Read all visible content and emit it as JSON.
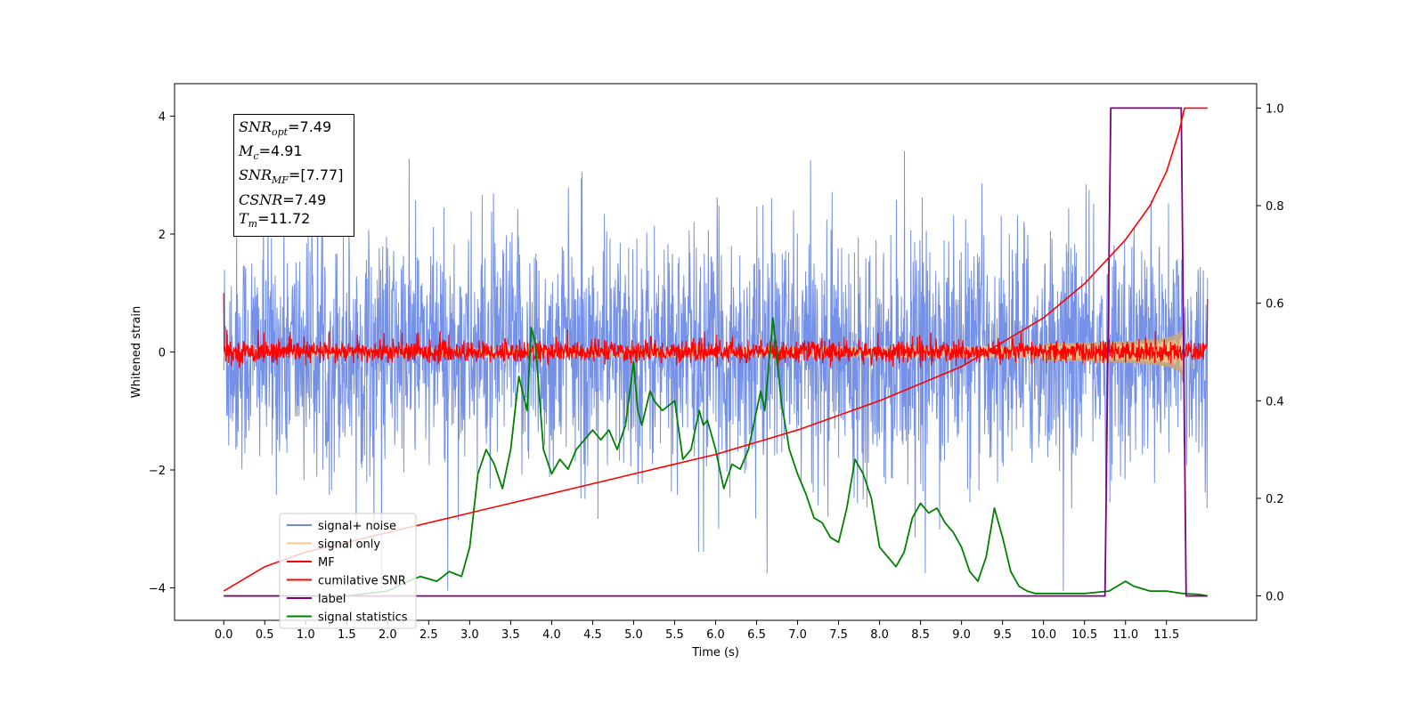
{
  "chart_data": {
    "type": "line",
    "xlabel": "Time (s)",
    "ylabel": "Whitened strain",
    "xlim": [
      -0.6,
      12.6
    ],
    "ylim_left": [
      -4.55,
      4.55
    ],
    "ylim_right": [
      -0.05,
      1.05
    ],
    "x_ticks": [
      0.0,
      0.5,
      1.0,
      1.5,
      2.0,
      2.5,
      3.0,
      3.5,
      4.0,
      4.5,
      5.0,
      5.5,
      6.0,
      6.5,
      7.0,
      7.5,
      8.0,
      8.5,
      9.0,
      9.5,
      10.0,
      10.5,
      11.0,
      11.5
    ],
    "x_tick_labels": [
      "0.0",
      "0.5",
      "1.0",
      "1.5",
      "2.0",
      "2.5",
      "3.0",
      "3.5",
      "4.0",
      "4.5",
      "5.0",
      "5.5",
      "6.0",
      "6.5",
      "7.0",
      "7.5",
      "8.0",
      "8.5",
      "9.0",
      "9.5",
      "10.0",
      "10.5",
      "11.0",
      "11.5"
    ],
    "y_ticks_left": [
      4,
      2,
      0,
      -2,
      -4
    ],
    "y_tick_labels_left": [
      "4",
      "2",
      "0",
      "−2",
      "−4"
    ],
    "y_ticks_right": [
      1.0,
      0.8,
      0.6,
      0.4,
      0.2,
      0.0
    ],
    "y_tick_labels_right": [
      "1.0",
      "0.8",
      "0.6",
      "0.4",
      "0.2",
      "0.0"
    ],
    "grid": false,
    "legend_position": "lower-left",
    "series": [
      {
        "name": "signal+ noise",
        "color": "#6d8ae6",
        "axis": "left",
        "kind": "noise",
        "amplitude_envelope": 2.3
      },
      {
        "name": "signal only",
        "color": "#f5c98a",
        "axis": "left",
        "kind": "chirp",
        "peak_amplitude": 0.5,
        "merger_time": 11.72
      },
      {
        "name": "MF",
        "color": "#ff0000",
        "axis": "left",
        "kind": "noise",
        "amplitude_envelope": 0.25
      },
      {
        "name": "cumilative SNR",
        "color": "#ff0000",
        "axis": "right",
        "x": [
          0.0,
          0.5,
          1.0,
          2.0,
          3.0,
          4.0,
          5.0,
          6.0,
          7.0,
          8.0,
          9.0,
          9.5,
          10.0,
          10.5,
          11.0,
          11.3,
          11.5,
          11.65,
          11.72,
          12.0
        ],
        "y": [
          0.01,
          0.06,
          0.09,
          0.13,
          0.17,
          0.21,
          0.25,
          0.29,
          0.34,
          0.4,
          0.47,
          0.52,
          0.57,
          0.64,
          0.73,
          0.8,
          0.87,
          0.95,
          1.0,
          1.0
        ]
      },
      {
        "name": "label",
        "color": "#800080",
        "axis": "right",
        "x": [
          0.0,
          10.75,
          10.82,
          11.68,
          11.74,
          12.0
        ],
        "y": [
          0.0,
          0.0,
          1.0,
          1.0,
          0.0,
          0.0
        ]
      },
      {
        "name": "signal statistics",
        "color": "#008000",
        "axis": "right",
        "x": [
          0.0,
          0.5,
          1.0,
          1.5,
          2.0,
          2.25,
          2.4,
          2.6,
          2.75,
          2.9,
          3.0,
          3.1,
          3.2,
          3.3,
          3.4,
          3.5,
          3.6,
          3.7,
          3.75,
          3.8,
          3.9,
          4.0,
          4.1,
          4.2,
          4.3,
          4.4,
          4.5,
          4.6,
          4.7,
          4.8,
          4.9,
          5.0,
          5.05,
          5.1,
          5.2,
          5.25,
          5.35,
          5.5,
          5.6,
          5.7,
          5.8,
          5.85,
          5.9,
          6.0,
          6.1,
          6.2,
          6.3,
          6.4,
          6.55,
          6.6,
          6.7,
          6.8,
          6.9,
          7.0,
          7.1,
          7.2,
          7.3,
          7.4,
          7.5,
          7.6,
          7.7,
          7.8,
          7.9,
          8.0,
          8.1,
          8.2,
          8.3,
          8.4,
          8.5,
          8.6,
          8.7,
          8.8,
          8.9,
          9.0,
          9.1,
          9.2,
          9.3,
          9.4,
          9.5,
          9.6,
          9.7,
          9.8,
          9.9,
          10.0,
          10.5,
          10.8,
          11.0,
          11.1,
          11.3,
          11.5,
          11.7,
          11.9,
          12.0
        ],
        "y": [
          0.0,
          0.0,
          0.0,
          0.0,
          0.01,
          0.03,
          0.04,
          0.03,
          0.05,
          0.04,
          0.1,
          0.25,
          0.3,
          0.27,
          0.22,
          0.3,
          0.45,
          0.38,
          0.55,
          0.52,
          0.3,
          0.25,
          0.28,
          0.26,
          0.3,
          0.32,
          0.34,
          0.32,
          0.34,
          0.3,
          0.35,
          0.48,
          0.38,
          0.35,
          0.42,
          0.4,
          0.38,
          0.4,
          0.28,
          0.3,
          0.38,
          0.35,
          0.36,
          0.3,
          0.22,
          0.27,
          0.26,
          0.3,
          0.42,
          0.38,
          0.57,
          0.4,
          0.3,
          0.25,
          0.21,
          0.16,
          0.15,
          0.12,
          0.11,
          0.18,
          0.28,
          0.25,
          0.2,
          0.1,
          0.08,
          0.06,
          0.09,
          0.16,
          0.19,
          0.17,
          0.18,
          0.15,
          0.13,
          0.1,
          0.05,
          0.03,
          0.08,
          0.18,
          0.12,
          0.05,
          0.02,
          0.01,
          0.005,
          0.005,
          0.005,
          0.01,
          0.03,
          0.02,
          0.01,
          0.01,
          0.005,
          0.003,
          0.0
        ]
      }
    ]
  },
  "annotation": {
    "snr_opt_base": "SNR",
    "snr_opt_sub": "opt",
    "snr_opt_value": "=7.49",
    "mc_base": "M",
    "mc_sub": "c",
    "mc_value": "=4.91",
    "snr_mf_base": "SNR",
    "snr_mf_sub": "MF",
    "snr_mf_value": "=[7.77]",
    "csnr_base": "CSNR",
    "csnr_value": "=7.49",
    "tm_base": "T",
    "tm_sub": "m",
    "tm_value": "=11.72"
  },
  "legend": {
    "items": [
      {
        "label": "signal+ noise",
        "color": "#6d8ae6"
      },
      {
        "label": "signal only",
        "color": "#f5c98a"
      },
      {
        "label": "MF",
        "color": "#ff0000"
      },
      {
        "label": "cumilative SNR",
        "color": "#ff0000"
      },
      {
        "label": "label",
        "color": "#800080"
      },
      {
        "label": "signal statistics",
        "color": "#008000"
      }
    ]
  }
}
